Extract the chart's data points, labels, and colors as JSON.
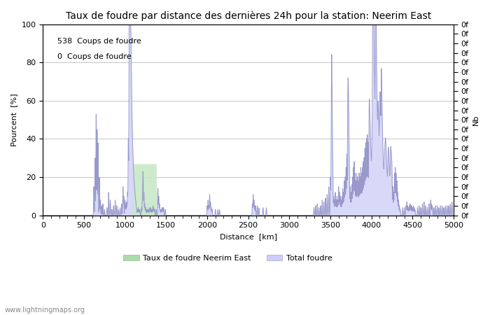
{
  "title": "Taux de foudre par distance des dernières 24h pour la station: Neerim East",
  "xlabel": "Distance  [km]",
  "ylabel_left": "Pourcent  [%]",
  "ylabel_right": "Nb",
  "annotation_line1": "538  Coups de foudre",
  "annotation_line2": "0  Coups de foudre",
  "xlim": [
    0,
    5000
  ],
  "ylim": [
    0,
    100
  ],
  "xticks": [
    0,
    500,
    1000,
    1500,
    2000,
    2500,
    3000,
    3500,
    4000,
    4500,
    5000
  ],
  "yticks_left": [
    0,
    20,
    40,
    60,
    80,
    100
  ],
  "right_ytick_labels": [
    "0f",
    "0f",
    "0f",
    "0f",
    "0f",
    "0f",
    "0f",
    "0f",
    "0f",
    "0f",
    "0f",
    "0f",
    "0f",
    "0f",
    "0f",
    "0f",
    "0f",
    "0f",
    "0f",
    "0f",
    "0f"
  ],
  "legend_label1": "Taux de foudre Neerim East",
  "legend_label2": "Total foudre",
  "legend_color1": "#aaddaa",
  "legend_color2": "#ccccff",
  "line_color": "#9999cc",
  "fill_color1": "#c8e8c8",
  "fill_color2": "#d8d8f8",
  "bg_color": "#ffffff",
  "grid_color": "#bbbbbb",
  "watermark": "www.lightningmaps.org",
  "title_fontsize": 10,
  "label_fontsize": 8,
  "tick_fontsize": 8,
  "annot_fontsize": 8
}
